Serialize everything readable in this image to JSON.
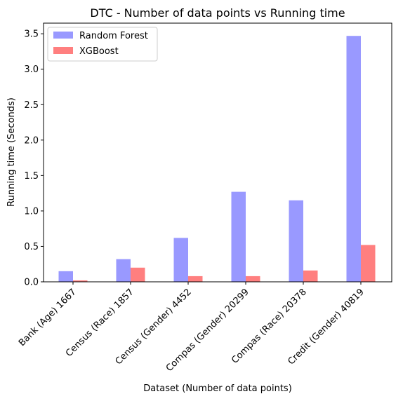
{
  "chart_data": {
    "type": "bar",
    "title": "DTC - Number of data points vs Running time",
    "xlabel": "Dataset (Number of data points)",
    "ylabel": "Running time (Seconds)",
    "categories": [
      "Bank (Age) 1667",
      "Census (Race) 1857",
      "Census (Gender) 4452",
      "Compas (Gender) 20299",
      "Compas (Race) 20378",
      "Credit (Gender) 40819"
    ],
    "series": [
      {
        "name": "Random Forest",
        "color": "#9999ff",
        "values": [
          0.15,
          0.32,
          0.62,
          1.27,
          1.15,
          3.47
        ]
      },
      {
        "name": "XGBoost",
        "color": "#ff7f7f",
        "values": [
          0.02,
          0.2,
          0.08,
          0.08,
          0.16,
          0.52
        ]
      }
    ],
    "ylim": [
      0,
      3.65
    ],
    "yticks": [
      "0.0",
      "0.5",
      "1.0",
      "1.5",
      "2.0",
      "2.5",
      "3.0",
      "3.5"
    ],
    "grid": false,
    "legend_position": "top-left"
  }
}
